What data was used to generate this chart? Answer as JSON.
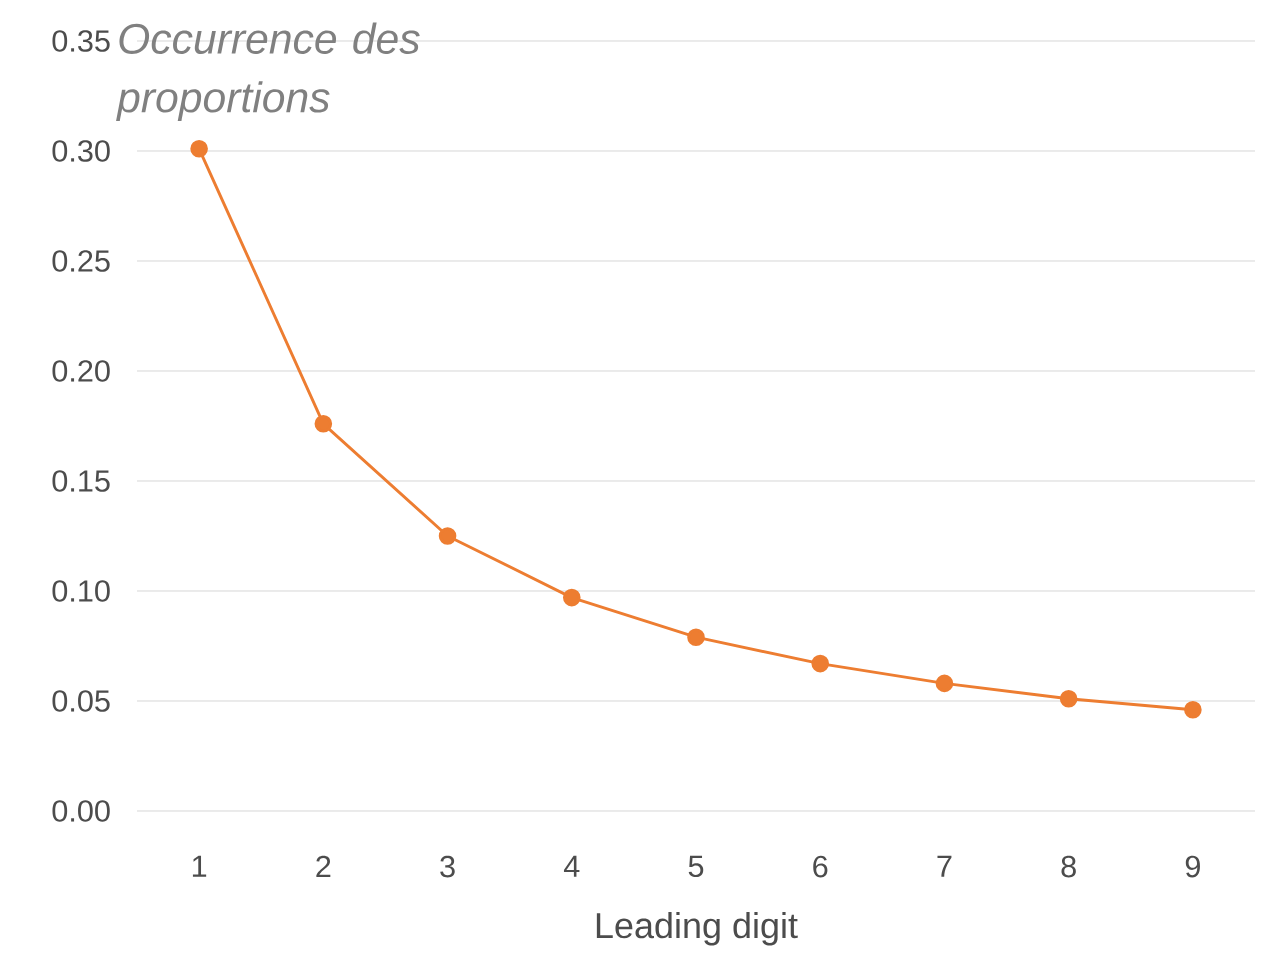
{
  "chart_data": {
    "type": "line",
    "ylabel": "Occurrence des proportions",
    "xlabel": "Leading digit",
    "categories": [
      "1",
      "2",
      "3",
      "4",
      "5",
      "6",
      "7",
      "8",
      "9"
    ],
    "series": [
      {
        "color": "#ed7d31",
        "values": [
          0.301,
          0.176,
          0.125,
          0.097,
          0.079,
          0.067,
          0.058,
          0.051,
          0.046
        ]
      }
    ],
    "ylim": [
      0,
      0.35
    ],
    "yticks": [
      {
        "value": 0,
        "label": "0.00"
      },
      {
        "value": 0.05,
        "label": "0.05"
      },
      {
        "value": 0.1,
        "label": "0.10"
      },
      {
        "value": 0.15,
        "label": "0.15"
      },
      {
        "value": 0.2,
        "label": "0.20"
      },
      {
        "value": 0.25,
        "label": "0.25"
      },
      {
        "value": 0.3,
        "label": "0.30"
      },
      {
        "value": 0.35,
        "label": "0.35"
      }
    ],
    "grid": "y",
    "marker": "circle",
    "line_style": "solid"
  }
}
